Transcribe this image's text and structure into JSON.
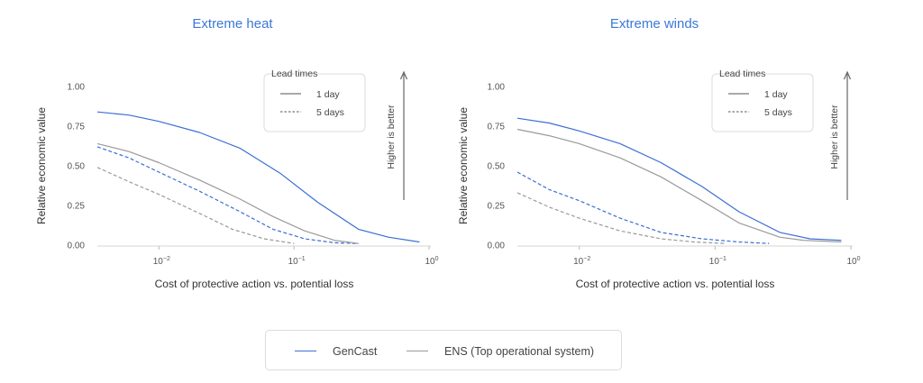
{
  "colors": {
    "gencast": "#3b6fd4",
    "ens": "#9a9a9a",
    "title": "#3b78d8",
    "axis": "#d6d6d6"
  },
  "legend": {
    "title": "Lead times",
    "items": [
      {
        "label": "1 day",
        "style": "solid"
      },
      {
        "label": "5 days",
        "style": "dashed"
      }
    ]
  },
  "bottom_legend": {
    "items": [
      {
        "label": "GenCast",
        "color": "#3b6fd4"
      },
      {
        "label": "ENS (Top operational system)",
        "color": "#9a9a9a"
      }
    ]
  },
  "chart_data": [
    {
      "type": "line",
      "title": "Extreme heat",
      "xlabel": "Cost of protective action vs. potential loss",
      "ylabel": "Relative economic value",
      "x_scale": "log",
      "xlim": [
        0.0035,
        1.0
      ],
      "ylim": [
        0,
        1.0
      ],
      "yticks": [
        "0.00",
        "0.25",
        "0.50",
        "0.75",
        "1.00"
      ],
      "xticks": [
        {
          "value": 0.01,
          "base": "10",
          "exp": "−2"
        },
        {
          "value": 0.1,
          "base": "10",
          "exp": "−1"
        },
        {
          "value": 1.0,
          "base": "10",
          "exp": "0"
        }
      ],
      "annotation": "Higher is better",
      "series": [
        {
          "name": "GenCast",
          "lead": "1 day",
          "x": [
            0.0035,
            0.006,
            0.01,
            0.02,
            0.04,
            0.08,
            0.15,
            0.3,
            0.5,
            0.85
          ],
          "y": [
            0.84,
            0.82,
            0.78,
            0.71,
            0.61,
            0.45,
            0.27,
            0.1,
            0.05,
            0.02
          ]
        },
        {
          "name": "GenCast",
          "lead": "5 days",
          "x": [
            0.0035,
            0.006,
            0.01,
            0.02,
            0.04,
            0.07,
            0.12,
            0.2,
            0.3
          ],
          "y": [
            0.62,
            0.55,
            0.46,
            0.34,
            0.21,
            0.1,
            0.04,
            0.015,
            0.01
          ]
        },
        {
          "name": "ENS",
          "lead": "1 day",
          "x": [
            0.0035,
            0.006,
            0.01,
            0.02,
            0.04,
            0.07,
            0.12,
            0.2,
            0.3
          ],
          "y": [
            0.64,
            0.59,
            0.52,
            0.41,
            0.29,
            0.18,
            0.09,
            0.03,
            0.01
          ]
        },
        {
          "name": "ENS",
          "lead": "5 days",
          "x": [
            0.0035,
            0.006,
            0.01,
            0.02,
            0.035,
            0.06,
            0.1
          ],
          "y": [
            0.49,
            0.4,
            0.32,
            0.2,
            0.1,
            0.04,
            0.01
          ]
        }
      ]
    },
    {
      "type": "line",
      "title": "Extreme winds",
      "xlabel": "Cost of protective action vs. potential loss",
      "ylabel": "Relative economic value",
      "x_scale": "log",
      "xlim": [
        0.0035,
        1.0
      ],
      "ylim": [
        0,
        1.0
      ],
      "yticks": [
        "0.00",
        "0.25",
        "0.50",
        "0.75",
        "1.00"
      ],
      "xticks": [
        {
          "value": 0.01,
          "base": "10",
          "exp": "−2"
        },
        {
          "value": 0.1,
          "base": "10",
          "exp": "−1"
        },
        {
          "value": 1.0,
          "base": "10",
          "exp": "0"
        }
      ],
      "annotation": "Higher is better",
      "series": [
        {
          "name": "GenCast",
          "lead": "1 day",
          "x": [
            0.0035,
            0.006,
            0.01,
            0.02,
            0.04,
            0.08,
            0.15,
            0.3,
            0.5,
            0.85
          ],
          "y": [
            0.8,
            0.77,
            0.72,
            0.64,
            0.52,
            0.37,
            0.21,
            0.08,
            0.04,
            0.03
          ]
        },
        {
          "name": "GenCast",
          "lead": "5 days",
          "x": [
            0.0035,
            0.006,
            0.01,
            0.02,
            0.04,
            0.08,
            0.15,
            0.25
          ],
          "y": [
            0.46,
            0.35,
            0.28,
            0.17,
            0.08,
            0.04,
            0.02,
            0.01
          ]
        },
        {
          "name": "ENS",
          "lead": "1 day",
          "x": [
            0.0035,
            0.006,
            0.01,
            0.02,
            0.04,
            0.08,
            0.15,
            0.3,
            0.45,
            0.85
          ],
          "y": [
            0.73,
            0.69,
            0.64,
            0.55,
            0.43,
            0.28,
            0.14,
            0.05,
            0.03,
            0.02
          ]
        },
        {
          "name": "ENS",
          "lead": "5 days",
          "x": [
            0.0035,
            0.006,
            0.01,
            0.02,
            0.04,
            0.07,
            0.12
          ],
          "y": [
            0.33,
            0.24,
            0.17,
            0.09,
            0.04,
            0.02,
            0.01
          ]
        }
      ]
    }
  ]
}
